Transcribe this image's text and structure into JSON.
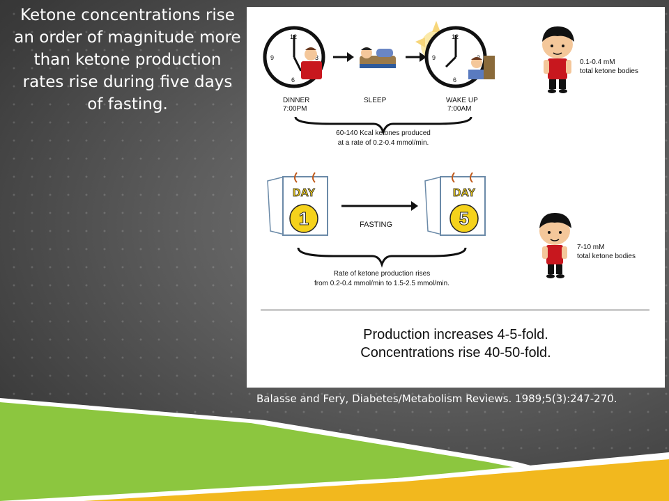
{
  "slide": {
    "title": "Ketone concentrations rise an order of magnitude more than ketone production rates rise during five days of fasting.",
    "citation": "Balasse and Fery, Diabetes/Metabolism Reviews. 1989;5(3):247-270."
  },
  "figure": {
    "overnight": {
      "dinner_label": "DINNER",
      "dinner_time": "7:00PM",
      "sleep_label": "SLEEP",
      "wakeup_label": "WAKE UP",
      "wakeup_time": "7:00AM",
      "caption_line1": "60-140 Kcal ketones produced",
      "caption_line2": "at a rate of 0.2-0.4 mmol/min.",
      "concentration": "0.1-0.4 mM",
      "concentration_unit": "total ketone bodies"
    },
    "fasting": {
      "day_word": "DAY",
      "start_day": "1",
      "end_day": "5",
      "fasting_label": "FASTING",
      "caption_line1": "Rate of ketone production rises",
      "caption_line2": "from 0.2-0.4 mmol/min to 1.5-2.5 mmol/min.",
      "concentration": "7-10 mM",
      "concentration_unit": "total ketone bodies"
    },
    "summary_line1": "Production increases 4-5-fold.",
    "summary_line2": "Concentrations rise 40-50-fold."
  },
  "colors": {
    "green": "#8cc63f",
    "yellow": "#f2b81e",
    "day_circle": "#f5d21c",
    "shirt_red": "#c8171e"
  }
}
